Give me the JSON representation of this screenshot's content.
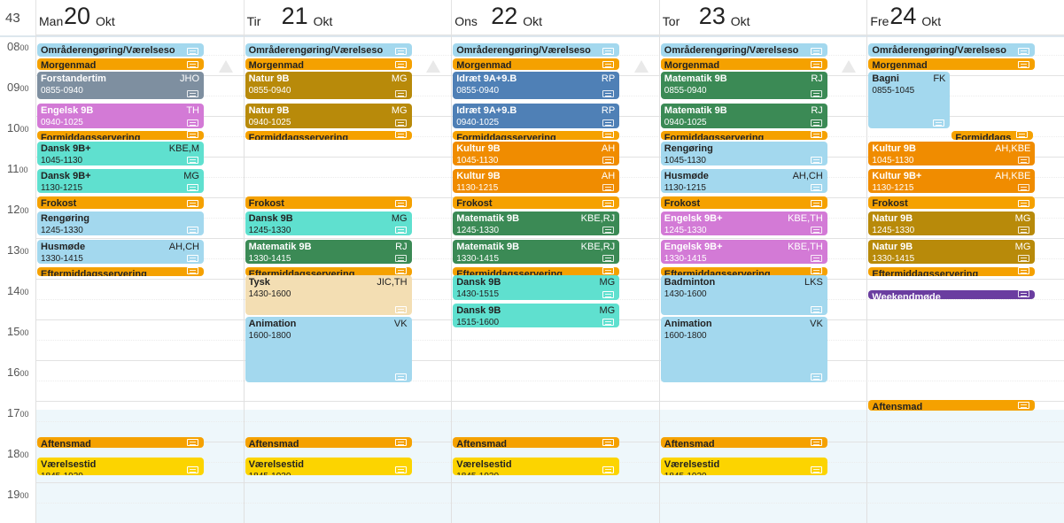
{
  "week_number": "43",
  "hours": [
    {
      "h": "08",
      "m": "00"
    },
    {
      "h": "09",
      "m": "00"
    },
    {
      "h": "10",
      "m": "00"
    },
    {
      "h": "11",
      "m": "00"
    },
    {
      "h": "12",
      "m": "00"
    },
    {
      "h": "13",
      "m": "00"
    },
    {
      "h": "14",
      "m": "00"
    },
    {
      "h": "15",
      "m": "00"
    },
    {
      "h": "16",
      "m": "00"
    },
    {
      "h": "17",
      "m": "00"
    },
    {
      "h": "18",
      "m": "00"
    },
    {
      "h": "19",
      "m": "00"
    }
  ],
  "colors": {
    "light_blue": "#a3d8ee",
    "orange": "#f5a100",
    "dark_orange": "#f08c00",
    "slate": "#7e8fa0",
    "magenta": "#d37ad6",
    "teal": "#5fe0cf",
    "olive": "#b88a0a",
    "steel_blue": "#4f80b6",
    "green": "#3b8a55",
    "wheat": "#f3deb3",
    "yellow": "#fcd400",
    "purple": "#6a3da0"
  },
  "days": [
    {
      "name": "Man",
      "date": "20",
      "month": "Okt",
      "events": [
        {
          "title": "Områderengøring/Værelseso",
          "initials": "",
          "time": "",
          "start": "08:00",
          "end": "08:22",
          "color": "light_blue",
          "lane": 0,
          "lanes": 1
        },
        {
          "title": "Morgenmad",
          "initials": "",
          "time": "",
          "start": "08:22",
          "end": "08:42",
          "color": "orange",
          "lane": 0,
          "lanes": 1
        },
        {
          "title": "Forstandertim",
          "initials": "JHO",
          "time": "0855-0940",
          "start": "08:42",
          "end": "09:25",
          "color": "slate",
          "lane": 0,
          "lanes": 1
        },
        {
          "title": "Engelsk 9B",
          "initials": "TH",
          "time": "0940-1025",
          "start": "09:29",
          "end": "10:07",
          "color": "magenta",
          "lane": 0,
          "lanes": 1
        },
        {
          "title": "Formiddagsservering",
          "initials": "",
          "time": "",
          "start": "10:09",
          "end": "10:21",
          "color": "orange",
          "lane": 0,
          "lanes": 1
        },
        {
          "title": "Dansk 9B+",
          "initials": "KBE,M",
          "time": "1045-1130",
          "start": "10:24",
          "end": "11:02",
          "color": "teal",
          "lane": 0,
          "lanes": 1
        },
        {
          "title": "Dansk 9B+",
          "initials": "MG",
          "time": "1130-1215",
          "start": "11:05",
          "end": "11:43",
          "color": "teal",
          "lane": 0,
          "lanes": 1
        },
        {
          "title": "Frokost",
          "initials": "",
          "time": "",
          "start": "11:46",
          "end": "12:06",
          "color": "orange",
          "lane": 0,
          "lanes": 1
        },
        {
          "title": "Rengøring",
          "initials": "",
          "time": "1245-1330",
          "start": "12:08",
          "end": "12:46",
          "color": "light_blue",
          "lane": 0,
          "lanes": 1
        },
        {
          "title": "Husmøde",
          "initials": "AH,CH",
          "time": "1330-1415",
          "start": "12:49",
          "end": "13:27",
          "color": "light_blue",
          "lane": 0,
          "lanes": 1
        },
        {
          "title": "Eftermiddagsservering",
          "initials": "",
          "time": "",
          "start": "13:30",
          "end": "13:40",
          "color": "orange",
          "lane": 0,
          "lanes": 1
        },
        {
          "title": "Aftensmad",
          "initials": "",
          "time": "",
          "start": "17:40",
          "end": "17:59",
          "color": "orange",
          "lane": 0,
          "lanes": 1
        },
        {
          "title": "Værelsestid",
          "initials": "",
          "time": "1845-1930",
          "start": "18:10",
          "end": "18:39",
          "color": "yellow",
          "lane": 0,
          "lanes": 1
        }
      ]
    },
    {
      "name": "Tir",
      "date": "21",
      "month": "Okt",
      "events": [
        {
          "title": "Områderengøring/Værelseso",
          "initials": "",
          "time": "",
          "start": "08:00",
          "end": "08:22",
          "color": "light_blue",
          "lane": 0,
          "lanes": 1
        },
        {
          "title": "Morgenmad",
          "initials": "",
          "time": "",
          "start": "08:22",
          "end": "08:42",
          "color": "orange",
          "lane": 0,
          "lanes": 1
        },
        {
          "title": "Natur 9B",
          "initials": "MG",
          "time": "0855-0940",
          "start": "08:42",
          "end": "09:25",
          "color": "olive",
          "lane": 0,
          "lanes": 1
        },
        {
          "title": "Natur 9B",
          "initials": "MG",
          "time": "0940-1025",
          "start": "09:29",
          "end": "10:07",
          "color": "olive",
          "lane": 0,
          "lanes": 1
        },
        {
          "title": "Formiddagsservering",
          "initials": "",
          "time": "",
          "start": "10:09",
          "end": "10:21",
          "color": "orange",
          "lane": 0,
          "lanes": 1
        },
        {
          "title": "Frokost",
          "initials": "",
          "time": "",
          "start": "11:46",
          "end": "12:06",
          "color": "orange",
          "lane": 0,
          "lanes": 1
        },
        {
          "title": "Dansk 9B",
          "initials": "MG",
          "time": "1245-1330",
          "start": "12:08",
          "end": "12:46",
          "color": "teal",
          "lane": 0,
          "lanes": 1
        },
        {
          "title": "Matematik 9B",
          "initials": "RJ",
          "time": "1330-1415",
          "start": "12:49",
          "end": "13:27",
          "color": "green",
          "lane": 0,
          "lanes": 1
        },
        {
          "title": "Eftermiddagsservering",
          "initials": "",
          "time": "",
          "start": "13:30",
          "end": "13:40",
          "color": "orange",
          "lane": 0,
          "lanes": 1
        },
        {
          "title": "Tysk",
          "initials": "JIC,TH",
          "time": "1430-1600",
          "start": "13:42",
          "end": "14:43",
          "color": "wheat",
          "lane": 0,
          "lanes": 1
        },
        {
          "title": "Animation",
          "initials": "VK",
          "time": "1600-1800",
          "start": "14:43",
          "end": "16:22",
          "color": "light_blue",
          "lane": 0,
          "lanes": 1
        },
        {
          "title": "Aftensmad",
          "initials": "",
          "time": "",
          "start": "17:40",
          "end": "17:59",
          "color": "orange",
          "lane": 0,
          "lanes": 1
        },
        {
          "title": "Værelsestid",
          "initials": "",
          "time": "1845-1930",
          "start": "18:10",
          "end": "18:39",
          "color": "yellow",
          "lane": 0,
          "lanes": 1
        }
      ]
    },
    {
      "name": "Ons",
      "date": "22",
      "month": "Okt",
      "events": [
        {
          "title": "Områderengøring/Værelseso",
          "initials": "",
          "time": "",
          "start": "08:00",
          "end": "08:22",
          "color": "light_blue",
          "lane": 0,
          "lanes": 1
        },
        {
          "title": "Morgenmad",
          "initials": "",
          "time": "",
          "start": "08:22",
          "end": "08:42",
          "color": "orange",
          "lane": 0,
          "lanes": 1
        },
        {
          "title": "Idræt 9A+9.B",
          "initials": "RP",
          "time": "0855-0940",
          "start": "08:42",
          "end": "09:25",
          "color": "steel_blue",
          "lane": 0,
          "lanes": 1
        },
        {
          "title": "Idræt 9A+9.B",
          "initials": "RP",
          "time": "0940-1025",
          "start": "09:29",
          "end": "10:07",
          "color": "steel_blue",
          "lane": 0,
          "lanes": 1
        },
        {
          "title": "Formiddagsservering",
          "initials": "",
          "time": "",
          "start": "10:09",
          "end": "10:21",
          "color": "orange",
          "lane": 0,
          "lanes": 1
        },
        {
          "title": "Kultur 9B",
          "initials": "AH",
          "time": "1045-1130",
          "start": "10:24",
          "end": "11:02",
          "color": "dark_orange",
          "lane": 0,
          "lanes": 1
        },
        {
          "title": "Kultur 9B",
          "initials": "AH",
          "time": "1130-1215",
          "start": "11:05",
          "end": "11:43",
          "color": "dark_orange",
          "lane": 0,
          "lanes": 1
        },
        {
          "title": "Frokost",
          "initials": "",
          "time": "",
          "start": "11:46",
          "end": "12:06",
          "color": "orange",
          "lane": 0,
          "lanes": 1
        },
        {
          "title": "Matematik 9B",
          "initials": "KBE,RJ",
          "time": "1245-1330",
          "start": "12:08",
          "end": "12:46",
          "color": "green",
          "lane": 0,
          "lanes": 1
        },
        {
          "title": "Matematik 9B",
          "initials": "KBE,RJ",
          "time": "1330-1415",
          "start": "12:49",
          "end": "13:27",
          "color": "green",
          "lane": 0,
          "lanes": 1
        },
        {
          "title": "Eftermiddagsservering",
          "initials": "",
          "time": "",
          "start": "13:30",
          "end": "13:40",
          "color": "orange",
          "lane": 0,
          "lanes": 1
        },
        {
          "title": "Dansk 9B",
          "initials": "MG",
          "time": "1430-1515",
          "start": "13:42",
          "end": "14:20",
          "color": "teal",
          "lane": 0,
          "lanes": 1
        },
        {
          "title": "Dansk 9B",
          "initials": "MG",
          "time": "1515-1600",
          "start": "14:23",
          "end": "15:01",
          "color": "teal",
          "lane": 0,
          "lanes": 1
        },
        {
          "title": "Aftensmad",
          "initials": "",
          "time": "",
          "start": "17:40",
          "end": "17:59",
          "color": "orange",
          "lane": 0,
          "lanes": 1
        },
        {
          "title": "Værelsestid",
          "initials": "",
          "time": "1845-1930",
          "start": "18:10",
          "end": "18:39",
          "color": "yellow",
          "lane": 0,
          "lanes": 1
        }
      ]
    },
    {
      "name": "Tor",
      "date": "23",
      "month": "Okt",
      "events": [
        {
          "title": "Områderengøring/Værelseso",
          "initials": "",
          "time": "",
          "start": "08:00",
          "end": "08:22",
          "color": "light_blue",
          "lane": 0,
          "lanes": 1
        },
        {
          "title": "Morgenmad",
          "initials": "",
          "time": "",
          "start": "08:22",
          "end": "08:42",
          "color": "orange",
          "lane": 0,
          "lanes": 1
        },
        {
          "title": "Matematik 9B",
          "initials": "RJ",
          "time": "0855-0940",
          "start": "08:42",
          "end": "09:25",
          "color": "green",
          "lane": 0,
          "lanes": 1
        },
        {
          "title": "Matematik 9B",
          "initials": "RJ",
          "time": "0940-1025",
          "start": "09:29",
          "end": "10:07",
          "color": "green",
          "lane": 0,
          "lanes": 1
        },
        {
          "title": "Formiddagsservering",
          "initials": "",
          "time": "",
          "start": "10:09",
          "end": "10:21",
          "color": "orange",
          "lane": 0,
          "lanes": 1
        },
        {
          "title": "Rengøring",
          "initials": "",
          "time": "1045-1130",
          "start": "10:24",
          "end": "11:02",
          "color": "light_blue",
          "lane": 0,
          "lanes": 1
        },
        {
          "title": "Husmøde",
          "initials": "AH,CH",
          "time": "1130-1215",
          "start": "11:05",
          "end": "11:43",
          "color": "light_blue",
          "lane": 0,
          "lanes": 1
        },
        {
          "title": "Frokost",
          "initials": "",
          "time": "",
          "start": "11:46",
          "end": "12:06",
          "color": "orange",
          "lane": 0,
          "lanes": 1
        },
        {
          "title": "Engelsk 9B+",
          "initials": "KBE,TH",
          "time": "1245-1330",
          "start": "12:08",
          "end": "12:46",
          "color": "magenta",
          "lane": 0,
          "lanes": 1
        },
        {
          "title": "Engelsk 9B+",
          "initials": "KBE,TH",
          "time": "1330-1415",
          "start": "12:49",
          "end": "13:27",
          "color": "magenta",
          "lane": 0,
          "lanes": 1
        },
        {
          "title": "Eftermiddagsservering",
          "initials": "",
          "time": "",
          "start": "13:30",
          "end": "13:40",
          "color": "orange",
          "lane": 0,
          "lanes": 1
        },
        {
          "title": "Badminton",
          "initials": "LKS",
          "time": "1430-1600",
          "start": "13:42",
          "end": "14:43",
          "color": "light_blue",
          "lane": 0,
          "lanes": 1
        },
        {
          "title": "Animation",
          "initials": "VK",
          "time": "1600-1800",
          "start": "14:43",
          "end": "16:22",
          "color": "light_blue",
          "lane": 0,
          "lanes": 1
        },
        {
          "title": "Aftensmad",
          "initials": "",
          "time": "",
          "start": "17:40",
          "end": "17:59",
          "color": "orange",
          "lane": 0,
          "lanes": 1
        },
        {
          "title": "Værelsestid",
          "initials": "",
          "time": "1845-1930",
          "start": "18:10",
          "end": "18:39",
          "color": "yellow",
          "lane": 0,
          "lanes": 1
        }
      ]
    },
    {
      "name": "Fre",
      "date": "24",
      "month": "Okt",
      "events": [
        {
          "title": "Områderengøring/Værelseso",
          "initials": "",
          "time": "",
          "start": "08:00",
          "end": "08:22",
          "color": "light_blue",
          "lane": 0,
          "lanes": 1
        },
        {
          "title": "Morgenmad",
          "initials": "",
          "time": "",
          "start": "08:22",
          "end": "08:42",
          "color": "orange",
          "lane": 0,
          "lanes": 1
        },
        {
          "title": "Bagni",
          "initials": "FK",
          "time": "0855-1045",
          "start": "08:42",
          "end": "10:07",
          "color": "light_blue",
          "lane": 0,
          "lanes": 2
        },
        {
          "title": "Formiddags",
          "initials": "",
          "time": "",
          "start": "10:09",
          "end": "10:21",
          "color": "orange",
          "lane": 1,
          "lanes": 2
        },
        {
          "title": "Kultur 9B",
          "initials": "AH,KBE",
          "time": "1045-1130",
          "start": "10:24",
          "end": "11:02",
          "color": "dark_orange",
          "lane": 0,
          "lanes": 1
        },
        {
          "title": "Kultur 9B+",
          "initials": "AH,KBE",
          "time": "1130-1215",
          "start": "11:05",
          "end": "11:43",
          "color": "dark_orange",
          "lane": 0,
          "lanes": 1
        },
        {
          "title": "Frokost",
          "initials": "",
          "time": "",
          "start": "11:46",
          "end": "12:06",
          "color": "orange",
          "lane": 0,
          "lanes": 1
        },
        {
          "title": "Natur 9B",
          "initials": "MG",
          "time": "1245-1330",
          "start": "12:08",
          "end": "12:46",
          "color": "olive",
          "lane": 0,
          "lanes": 1
        },
        {
          "title": "Natur 9B",
          "initials": "MG",
          "time": "1330-1415",
          "start": "12:49",
          "end": "13:27",
          "color": "olive",
          "lane": 0,
          "lanes": 1
        },
        {
          "title": "Eftermiddagsservering",
          "initials": "",
          "time": "",
          "start": "13:30",
          "end": "13:40",
          "color": "orange",
          "lane": 0,
          "lanes": 1
        },
        {
          "title": "Weekendmøde",
          "initials": "",
          "time": "",
          "start": "14:04",
          "end": "14:12",
          "color": "purple",
          "lane": 0,
          "lanes": 1
        },
        {
          "title": "Aftensmad",
          "initials": "",
          "time": "",
          "start": "16:45",
          "end": "17:04",
          "color": "orange",
          "lane": 0,
          "lanes": 1
        }
      ]
    }
  ]
}
